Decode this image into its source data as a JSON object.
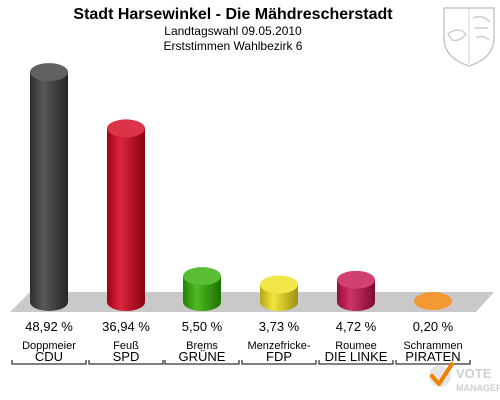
{
  "chart_data": {
    "type": "bar",
    "title": "Stadt Harsewinkel - Die Mähdrescherstadt",
    "subtitle_lines": [
      "Landtagswahl 09.05.2010",
      "Erststimmen Wahlbezirk 6"
    ],
    "categories": [
      "CDU",
      "SPD",
      "GRÜNE",
      "FDP",
      "DIE LINKE",
      "PIRATEN"
    ],
    "candidates": [
      "Doppmeier",
      "Feuß",
      "Brems",
      "Menzefricke-",
      "Roumee",
      "Schrammen"
    ],
    "values": [
      48.92,
      36.94,
      5.5,
      3.73,
      4.72,
      0.2
    ],
    "value_labels": [
      "48,92 %",
      "36,94 %",
      "5,50 %",
      "3,73 %",
      "4,72 %",
      "0,20 %"
    ],
    "ylim": [
      0,
      50
    ],
    "grid": false,
    "colors": [
      "#3a3a3a",
      "#d4001c",
      "#2fae00",
      "#f0e01a",
      "#c4104e",
      "#f08000"
    ]
  },
  "colors": {
    "floor": "#c9c9c9",
    "watermark": "#cfcfcf"
  },
  "watermark": {
    "line1": "VOTE",
    "line2": "MANAGER"
  },
  "icons": {
    "coat_of_arms": "nrw-coat-of-arms-icon",
    "logo": "vote-manager-check-icon"
  }
}
